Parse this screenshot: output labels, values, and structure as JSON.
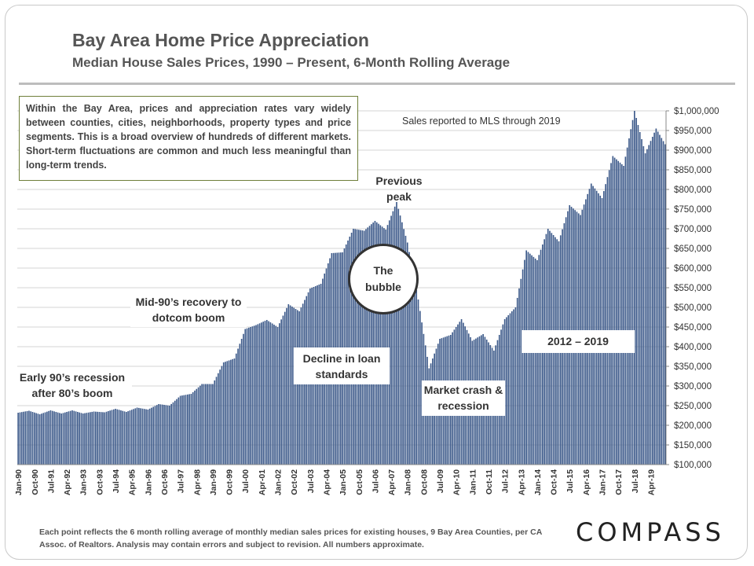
{
  "header": {
    "title": "Bay Area Home Price Appreciation",
    "subtitle": "Median House Sales Prices, 1990 – Present, 6-Month Rolling Average"
  },
  "note": "Within the Bay Area, prices and appreciation rates vary widely between counties, cities, neighborhoods, property types and price segments. This is a broad overview of hundreds of different markets. Short-term fluctuations are common and much less meaningful than long-term trends.",
  "sales_note": "Sales reported to MLS through 2019",
  "annotations": {
    "early90s": "Early 90’s recession after 80’s boom",
    "mid90s": "Mid-90’s recovery to dotcom boom",
    "loan": "Decline in loan standards",
    "bubble": "The bubble",
    "peak": "Previous peak",
    "crash": "Market crash & recession",
    "recent": "2012 – 2019"
  },
  "footer": "Each point reflects the 6 month rolling average of monthly median sales prices for existing houses, 9 Bay Area Counties, per CA Assoc. of Realtors. Analysis may contain errors and subject to revision. All numbers approximate.",
  "logo": "COMPASS",
  "colors": {
    "bar": "#3d5a8a",
    "bar_edge": "#2f4a78",
    "grid": "#d4d4d4"
  },
  "chart_data": {
    "type": "bar",
    "title": "Bay Area Home Price Appreciation",
    "subtitle": "Median House Sales Prices, 1990 – Present, 6-Month Rolling Average",
    "ylim": [
      100000,
      1000000
    ],
    "y_ticks": [
      "$100,000",
      "$150,000",
      "$200,000",
      "$250,000",
      "$300,000",
      "$350,000",
      "$400,000",
      "$450,000",
      "$500,000",
      "$550,000",
      "$600,000",
      "$650,000",
      "$700,000",
      "$750,000",
      "$800,000",
      "$850,000",
      "$900,000",
      "$950,000",
      "$1,000,000"
    ],
    "x_ticks": [
      "Jan-90",
      "Oct-90",
      "Jul-91",
      "Apr-92",
      "Jan-93",
      "Oct-93",
      "Jul-94",
      "Apr-95",
      "Jan-96",
      "Oct-96",
      "Jul-97",
      "Apr-98",
      "Jan-99",
      "Oct-99",
      "Jul-00",
      "Apr-01",
      "Jan-02",
      "Oct-02",
      "Jul-03",
      "Apr-04",
      "Jan-05",
      "Oct-05",
      "Jul-06",
      "Apr-07",
      "Jan-08",
      "Oct-08",
      "Jul-09",
      "Apr-10",
      "Jan-11",
      "Oct-11",
      "Jul-12",
      "Apr-13",
      "Jan-14",
      "Oct-14",
      "Jul-15",
      "Apr-16",
      "Jan-17",
      "Oct-17",
      "Jul-18",
      "Apr-19"
    ],
    "start": "Jan-1990",
    "interval": "month",
    "anchors": [
      [
        "Jan-1990",
        232000
      ],
      [
        "Jul-1990",
        237000
      ],
      [
        "Jan-1991",
        228000
      ],
      [
        "Jul-1991",
        238000
      ],
      [
        "Jan-1992",
        230000
      ],
      [
        "Jul-1992",
        238000
      ],
      [
        "Jan-1993",
        230000
      ],
      [
        "Jul-1993",
        235000
      ],
      [
        "Jan-1994",
        233000
      ],
      [
        "Jul-1994",
        242000
      ],
      [
        "Jan-1995",
        234000
      ],
      [
        "Jul-1995",
        245000
      ],
      [
        "Jan-1996",
        240000
      ],
      [
        "Jul-1996",
        254000
      ],
      [
        "Jan-1997",
        250000
      ],
      [
        "Jul-1997",
        275000
      ],
      [
        "Jan-1998",
        280000
      ],
      [
        "Jul-1998",
        305000
      ],
      [
        "Jan-1999",
        305000
      ],
      [
        "Jul-1999",
        360000
      ],
      [
        "Jan-2000",
        370000
      ],
      [
        "Jul-2000",
        445000
      ],
      [
        "Jan-2001",
        455000
      ],
      [
        "Jul-2001",
        468000
      ],
      [
        "Jan-2002",
        450000
      ],
      [
        "Jul-2002",
        508000
      ],
      [
        "Jan-2003",
        490000
      ],
      [
        "Jul-2003",
        548000
      ],
      [
        "Jan-2004",
        560000
      ],
      [
        "Jul-2004",
        638000
      ],
      [
        "Jan-2005",
        640000
      ],
      [
        "Jul-2005",
        700000
      ],
      [
        "Jan-2006",
        695000
      ],
      [
        "Jul-2006",
        720000
      ],
      [
        "Jan-2007",
        698000
      ],
      [
        "Jul-2007",
        768000
      ],
      [
        "Jan-2008",
        665000
      ],
      [
        "Jul-2008",
        520000
      ],
      [
        "Jan-2009",
        345000
      ],
      [
        "Jul-2009",
        420000
      ],
      [
        "Jan-2010",
        430000
      ],
      [
        "Jul-2010",
        470000
      ],
      [
        "Jan-2011",
        415000
      ],
      [
        "Jul-2011",
        432000
      ],
      [
        "Jan-2012",
        390000
      ],
      [
        "Jul-2012",
        470000
      ],
      [
        "Jan-2013",
        500000
      ],
      [
        "Jul-2013",
        645000
      ],
      [
        "Jan-2014",
        620000
      ],
      [
        "Jul-2014",
        700000
      ],
      [
        "Jan-2015",
        668000
      ],
      [
        "Jul-2015",
        760000
      ],
      [
        "Jan-2016",
        735000
      ],
      [
        "Jul-2016",
        815000
      ],
      [
        "Jan-2017",
        778000
      ],
      [
        "Jul-2017",
        885000
      ],
      [
        "Jan-2018",
        860000
      ],
      [
        "Jul-2018",
        1000000
      ],
      [
        "Jan-2019",
        892000
      ],
      [
        "Jul-2019",
        955000
      ],
      [
        "Dec-2019",
        915000
      ]
    ]
  }
}
